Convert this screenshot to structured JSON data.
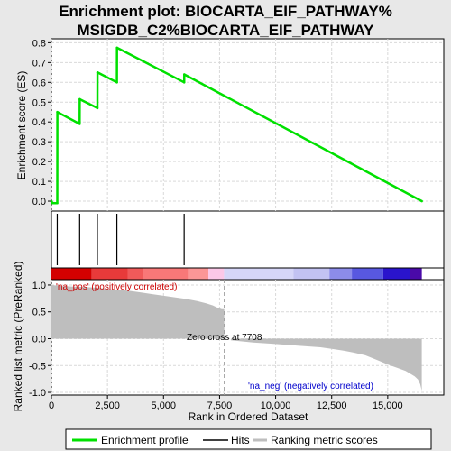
{
  "chart_data": {
    "type": "line",
    "title_line1": "Enrichment plot: BIOCARTA_EIF_PATHWAY%",
    "title_line2": "MSIGDB_C2%BIOCARTA_EIF_PATHWAY",
    "xlabel": "Rank in Ordered Dataset",
    "ylabel_top": "Enrichment score (ES)",
    "ylabel_bottom": "Ranked list metric (PreRanked)",
    "xlim": [
      0,
      17500
    ],
    "x_ticks": [
      0,
      2500,
      5000,
      7500,
      10000,
      12500,
      15000
    ],
    "x_tick_labels": [
      "0",
      "2,500",
      "5,000",
      "7,500",
      "10,000",
      "12,500",
      "15,000"
    ],
    "es_ylim": [
      -0.05,
      0.82
    ],
    "es_ticks": [
      0.0,
      0.1,
      0.2,
      0.3,
      0.4,
      0.5,
      0.6,
      0.7,
      0.8
    ],
    "es_tick_labels": [
      "0.0",
      "0.1",
      "0.2",
      "0.3",
      "0.4",
      "0.5",
      "0.6",
      "0.7",
      "0.8"
    ],
    "rank_ylim": [
      -1.05,
      1.1
    ],
    "rank_ticks": [
      -1.0,
      -0.5,
      0.0,
      0.5,
      1.0
    ],
    "rank_tick_labels": [
      "-1.0",
      "-0.5",
      "0.0",
      "0.5",
      "1.0"
    ],
    "enrichment_profile": {
      "x": [
        0,
        50,
        150,
        260,
        265,
        1260,
        1265,
        2050,
        2055,
        2920,
        2925,
        5920,
        5925,
        16520
      ],
      "y": [
        0.0,
        -0.01,
        -0.01,
        -0.01,
        0.45,
        0.39,
        0.515,
        0.47,
        0.65,
        0.6,
        0.775,
        0.6,
        0.64,
        0.0
      ]
    },
    "hits": [
      260,
      1260,
      2050,
      2920,
      5920
    ],
    "ranking_metric": {
      "x": [
        0,
        500,
        1000,
        1500,
        2000,
        2500,
        3000,
        3500,
        4000,
        4500,
        5000,
        5500,
        6000,
        6500,
        6900,
        7200,
        7400,
        7600,
        7708,
        8000,
        8500,
        9000,
        10000,
        11000,
        12000,
        12500,
        13000,
        13500,
        14000,
        14300,
        14600,
        15000,
        15400,
        15800,
        16000,
        16200,
        16350,
        16450,
        16520
      ],
      "y": [
        1.0,
        0.98,
        0.97,
        0.96,
        0.95,
        0.93,
        0.91,
        0.89,
        0.86,
        0.83,
        0.8,
        0.77,
        0.74,
        0.7,
        0.66,
        0.62,
        0.58,
        0.55,
        0.0,
        -0.03,
        -0.05,
        -0.07,
        -0.1,
        -0.13,
        -0.16,
        -0.19,
        -0.22,
        -0.26,
        -0.31,
        -0.36,
        -0.41,
        -0.48,
        -0.54,
        -0.6,
        -0.65,
        -0.7,
        -0.76,
        -0.85,
        -0.97
      ]
    },
    "zero_cross_label": "Zero cross at 7708",
    "zero_cross_x": 7708,
    "pos_label": "'na_pos' (positively correlated)",
    "neg_label": "'na_neg' (negatively correlated)",
    "heatmap_segments": [
      {
        "x0": 0,
        "x1": 1800,
        "color": "#d40000"
      },
      {
        "x0": 1800,
        "x1": 3400,
        "color": "#e83a3a"
      },
      {
        "x0": 3400,
        "x1": 4100,
        "color": "#f05a5a"
      },
      {
        "x0": 4100,
        "x1": 6100,
        "color": "#f87878"
      },
      {
        "x0": 6100,
        "x1": 7000,
        "color": "#fb9696"
      },
      {
        "x0": 7000,
        "x1": 7700,
        "color": "#fcc8e8"
      },
      {
        "x0": 7700,
        "x1": 10800,
        "color": "#d6d6f8"
      },
      {
        "x0": 10800,
        "x1": 12400,
        "color": "#c2c2f2"
      },
      {
        "x0": 12400,
        "x1": 13400,
        "color": "#8c8cea"
      },
      {
        "x0": 13400,
        "x1": 14800,
        "color": "#5858e0"
      },
      {
        "x0": 14800,
        "x1": 16000,
        "color": "#2a14cc"
      },
      {
        "x0": 16000,
        "x1": 16520,
        "color": "#4a0aa8"
      }
    ],
    "colors": {
      "profile": "#00e000",
      "hits": "#000000",
      "metric_fill": "#bebebe",
      "pos_text": "#cc0000",
      "neg_text": "#0000cc",
      "grid": "#d9d9d9"
    }
  },
  "legend": {
    "items": [
      {
        "label": "Enrichment profile",
        "color": "#00e000"
      },
      {
        "label": "Hits",
        "color": "#000000"
      },
      {
        "label": "Ranking metric scores",
        "color": "#bebebe"
      }
    ]
  }
}
